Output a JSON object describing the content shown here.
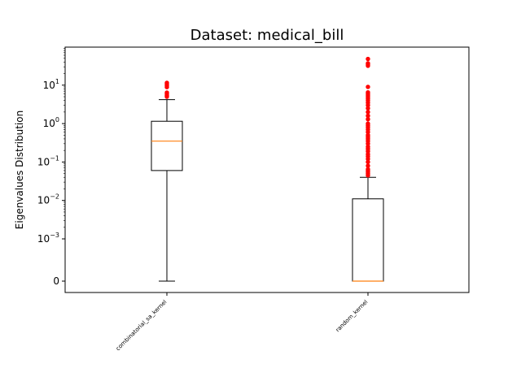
{
  "chart_data": {
    "type": "box",
    "title": "Dataset: medical_bill",
    "ylabel": "Eigenvalues Distribution",
    "xlabel": "",
    "yscale": "symlog",
    "ylim": [
      -0.0003,
      100
    ],
    "categories": [
      "combinatorial_sa_kernel",
      "random_kernel"
    ],
    "yticks": [
      {
        "value": 0,
        "label": "0"
      },
      {
        "value": 0.001,
        "label": "10",
        "exp": "−3"
      },
      {
        "value": 0.01,
        "label": "10",
        "exp": "−2"
      },
      {
        "value": 0.1,
        "label": "10",
        "exp": "−1"
      },
      {
        "value": 1,
        "label": "10",
        "exp": "0"
      },
      {
        "value": 10,
        "label": "10",
        "exp": "1"
      }
    ],
    "boxes": [
      {
        "category": "combinatorial_sa_kernel",
        "whisker_low": 0,
        "q1": 0.06,
        "median": 0.35,
        "q3": 1.15,
        "whisker_high": 4.2,
        "fliers": [
          5.0,
          5.4,
          5.9,
          6.4,
          8.9,
          9.8,
          10.7,
          11.5
        ]
      },
      {
        "category": "random_kernel",
        "whisker_low": 0,
        "q1": 0,
        "median": 0,
        "q3": 0.011,
        "whisker_high": 0.04,
        "fliers": [
          0.045,
          0.05,
          0.055,
          0.06,
          0.065,
          0.08,
          0.1,
          0.12,
          0.14,
          0.16,
          0.19,
          0.22,
          0.25,
          0.3,
          0.35,
          0.4,
          0.45,
          0.5,
          0.6,
          0.7,
          0.8,
          0.9,
          1.0,
          1.3,
          1.6,
          2.0,
          2.5,
          3.0,
          3.5,
          4.0,
          4.5,
          5.0,
          5.5,
          6.0,
          6.5,
          9.0,
          32,
          35,
          37,
          48
        ]
      }
    ],
    "colors": {
      "box": "#000000",
      "median": "#ff7f0e",
      "flier": "#ff0000"
    }
  }
}
